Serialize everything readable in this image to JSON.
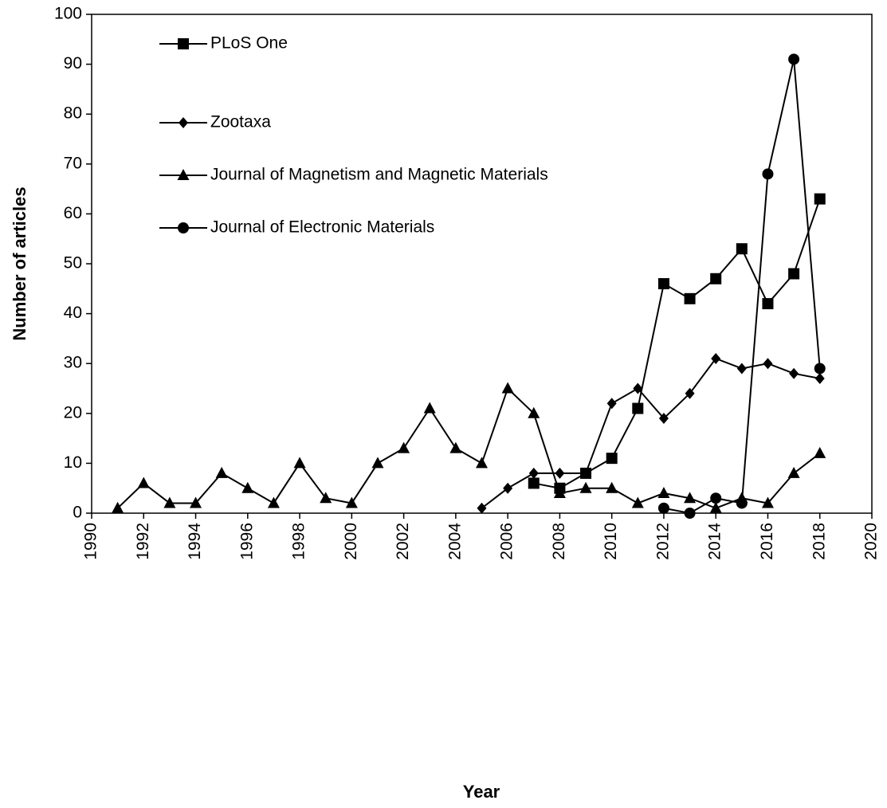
{
  "chart_data": {
    "type": "line",
    "xlabel": "Year",
    "ylabel": "Number of articles",
    "xlim": [
      1990,
      2020
    ],
    "xticks": [
      1990,
      1992,
      1994,
      1996,
      1998,
      2000,
      2002,
      2004,
      2006,
      2008,
      2010,
      2012,
      2014,
      2016,
      2018,
      2020
    ],
    "ylim": [
      0,
      100
    ],
    "yticks": [
      0,
      10,
      20,
      30,
      40,
      50,
      60,
      70,
      80,
      90,
      100
    ],
    "grid": false,
    "legend": "upper left",
    "series": [
      {
        "name": "PLoS One",
        "color": "#000000",
        "marker": "square",
        "x": [
          2007,
          2008,
          2009,
          2010,
          2011,
          2012,
          2013,
          2014,
          2015,
          2016,
          2017,
          2018
        ],
        "values": [
          6,
          5,
          8,
          11,
          21,
          46,
          43,
          47,
          53,
          42,
          48,
          63
        ]
      },
      {
        "name": "Zootaxa",
        "color": "#000000",
        "marker": "diamond",
        "x": [
          2005,
          2006,
          2007,
          2008,
          2009,
          2010,
          2011,
          2012,
          2013,
          2014,
          2015,
          2016,
          2017,
          2018
        ],
        "values": [
          1,
          5,
          8,
          8,
          8,
          22,
          25,
          19,
          24,
          31,
          29,
          30,
          28,
          27
        ]
      },
      {
        "name": "Journal of Magnetism and Magnetic Materials",
        "color": "#000000",
        "marker": "triangle",
        "x": [
          1991,
          1992,
          1993,
          1994,
          1995,
          1996,
          1997,
          1998,
          1999,
          2000,
          2001,
          2002,
          2003,
          2004,
          2005,
          2006,
          2007,
          2008,
          2009,
          2010,
          2011,
          2012,
          2013,
          2014,
          2015,
          2016,
          2017,
          2018
        ],
        "values": [
          1,
          6,
          2,
          2,
          8,
          5,
          2,
          10,
          3,
          2,
          10,
          13,
          21,
          13,
          10,
          25,
          20,
          4,
          5,
          5,
          2,
          4,
          3,
          1,
          3,
          2,
          8,
          12
        ]
      },
      {
        "name": "Journal of Electronic Materials",
        "color": "#000000",
        "marker": "circle",
        "x": [
          2012,
          2013,
          2014,
          2015,
          2016,
          2017,
          2018
        ],
        "values": [
          1,
          0,
          3,
          2,
          68,
          91,
          29
        ]
      }
    ]
  }
}
